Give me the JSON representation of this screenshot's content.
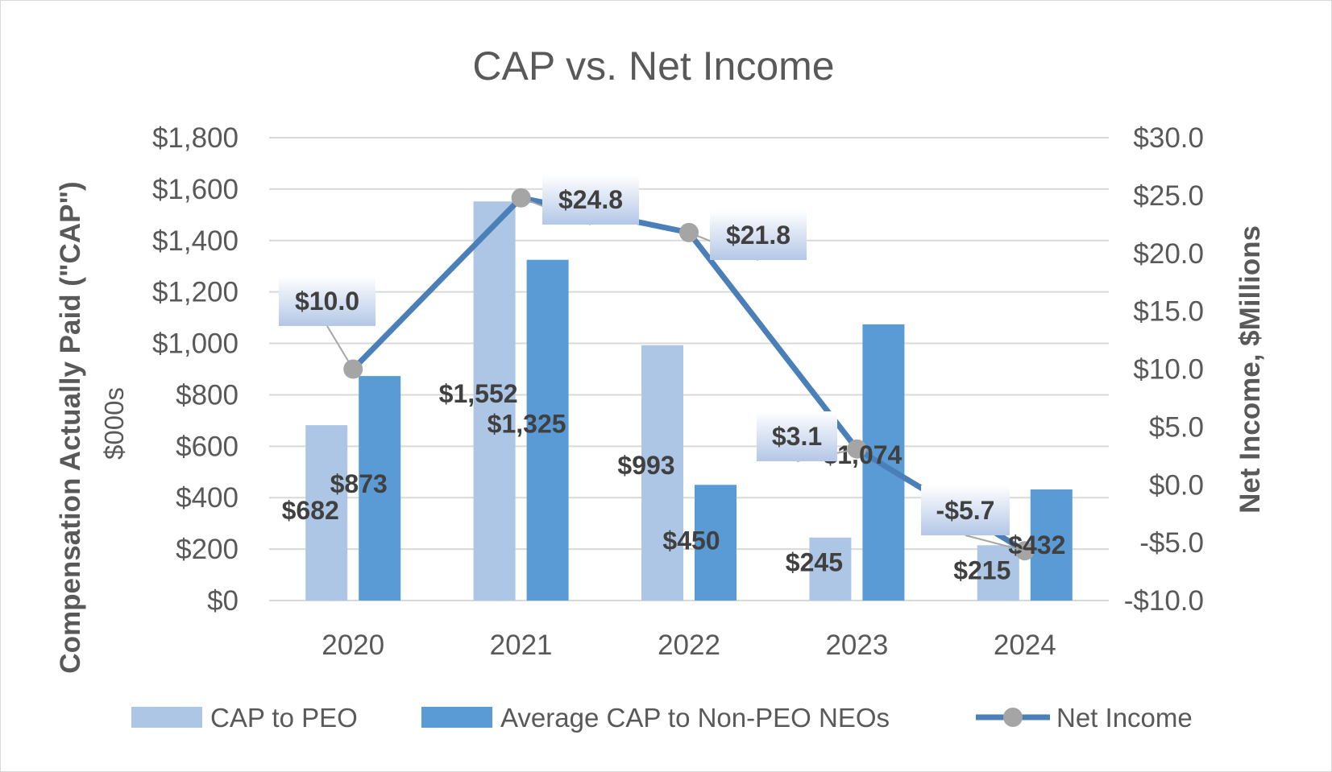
{
  "chart_data": {
    "type": "bar",
    "title": "CAP vs. Net Income",
    "categories": [
      "2020",
      "2021",
      "2022",
      "2023",
      "2024"
    ],
    "y_left": {
      "label": "Compensation Actually Paid (\"CAP\")",
      "sublabel": "$000s",
      "range": [
        0,
        1800
      ],
      "ticks": [
        0,
        200,
        400,
        600,
        800,
        1000,
        1200,
        1400,
        1600,
        1800
      ],
      "tick_labels": [
        "$0",
        "$200",
        "$400",
        "$600",
        "$800",
        "$1,000",
        "$1,200",
        "$1,400",
        "$1,600",
        "$1,800"
      ]
    },
    "y_right": {
      "label": "Net Income, $Millions",
      "range": [
        -10,
        30
      ],
      "ticks": [
        -10,
        -5,
        0,
        5,
        10,
        15,
        20,
        25,
        30
      ],
      "tick_labels": [
        "-$10.0",
        "-$5.0",
        "$0.0",
        "$5.0",
        "$10.0",
        "$15.0",
        "$20.0",
        "$25.0",
        "$30.0"
      ]
    },
    "grid": true,
    "legend_position": "bottom",
    "series": [
      {
        "name": "CAP to PEO",
        "kind": "bar",
        "axis": "left",
        "color": "#adc6e5",
        "values": [
          682,
          1552,
          993,
          245,
          215
        ],
        "labels": [
          "$682",
          "$1,552",
          "$993",
          "$245",
          "$215"
        ]
      },
      {
        "name": "Average CAP to Non-PEO NEOs",
        "kind": "bar",
        "axis": "left",
        "color": "#5b9bd5",
        "values": [
          873,
          1325,
          450,
          1074,
          432
        ],
        "labels": [
          "$873",
          "$1,325",
          "$450",
          "$1,074",
          "$432"
        ]
      },
      {
        "name": "Net Income",
        "kind": "line",
        "axis": "right",
        "color": "#4a7fb8",
        "marker_color": "#a5a5a5",
        "values": [
          10.0,
          24.8,
          21.8,
          3.1,
          -5.7
        ],
        "labels": [
          "$10.0",
          "$24.8",
          "$21.8",
          "$3.1",
          "-$5.7"
        ]
      }
    ]
  }
}
